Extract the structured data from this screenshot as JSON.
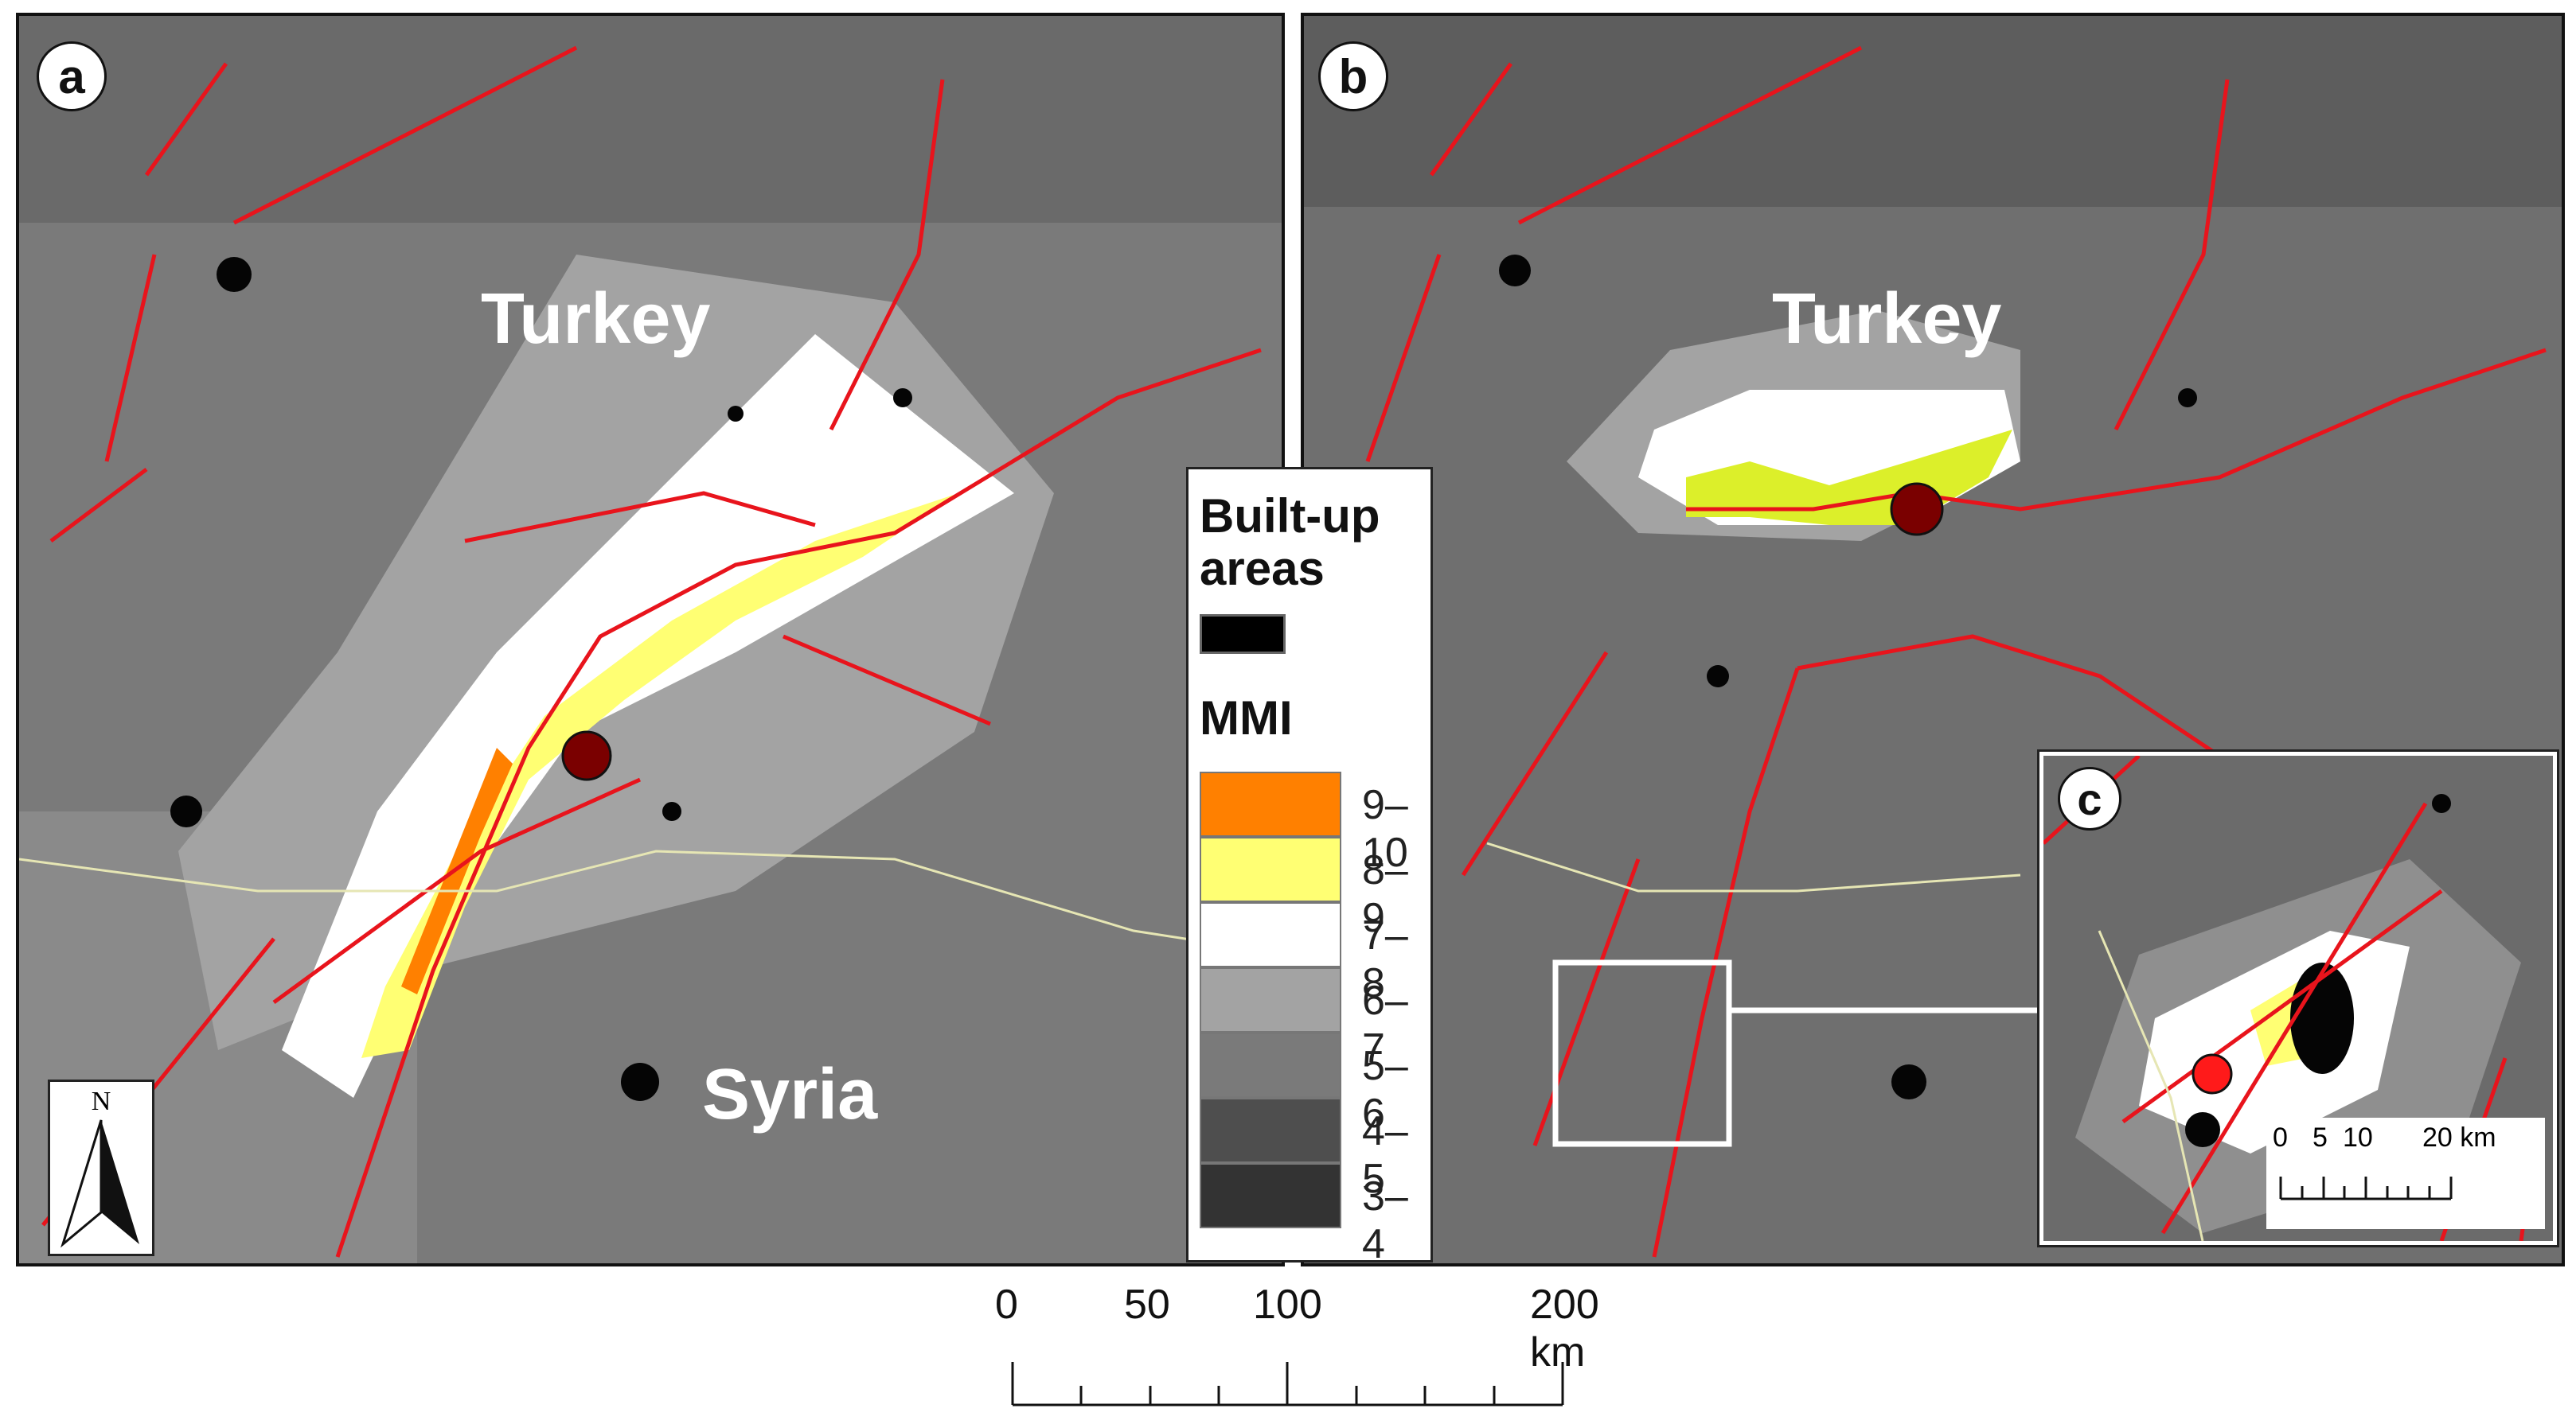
{
  "panels": {
    "a": {
      "label": "a",
      "countries": [
        "Turkey",
        "Syria"
      ]
    },
    "b": {
      "label": "b",
      "countries": [
        "Turkey"
      ]
    },
    "c": {
      "label": "c"
    }
  },
  "legend": {
    "builtup_title": "Built-up areas",
    "builtup_line1": "Built-up",
    "builtup_line2": "areas",
    "mmi_title": "MMI",
    "classes": [
      {
        "label": "9–10",
        "color": "#ff8000"
      },
      {
        "label": "8–9",
        "color": "#ffff73"
      },
      {
        "label": "7–8",
        "color": "#ffffff"
      },
      {
        "label": "6–7",
        "color": "#a3a3a3"
      },
      {
        "label": "5–6",
        "color": "#7a7a7a"
      },
      {
        "label": "4–5",
        "color": "#4e4e4e"
      },
      {
        "label": "3–4",
        "color": "#333333"
      }
    ]
  },
  "colors": {
    "fault": "#e8141c",
    "epicenter_ab": "#7a0000",
    "epicenter_c": "#ff1a1a",
    "border": "#e6e6b4"
  },
  "north_arrow": {
    "label": "N"
  },
  "scale_main": {
    "ticks": [
      "0",
      "50",
      "100",
      "200 km"
    ]
  },
  "scale_inset": {
    "ticks": [
      "0",
      "5",
      "10",
      "20 km"
    ]
  }
}
